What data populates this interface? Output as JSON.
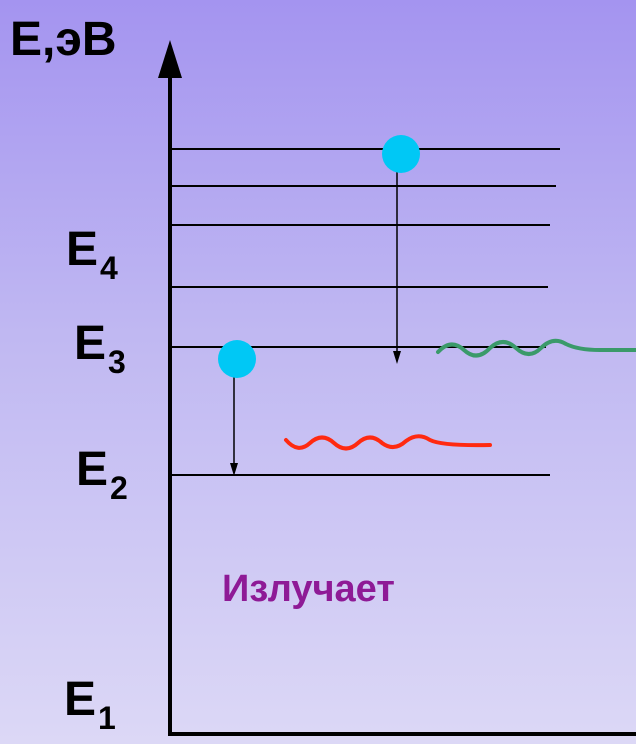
{
  "axis_title": "E,эВ",
  "levels": [
    {
      "letter": "E",
      "index": "4"
    },
    {
      "letter": "E",
      "index": "3"
    },
    {
      "letter": "E",
      "index": "2"
    },
    {
      "letter": "E",
      "index": "1"
    }
  ],
  "caption": "Излучает",
  "colors": {
    "background_top": "#a494f0",
    "background_bottom": "#dcd8f6",
    "electron": "#00c8f5",
    "photon_red": "#ff2a10",
    "photon_green": "#3a9a6a",
    "caption": "#8e1a96",
    "lines": "#000000"
  }
}
